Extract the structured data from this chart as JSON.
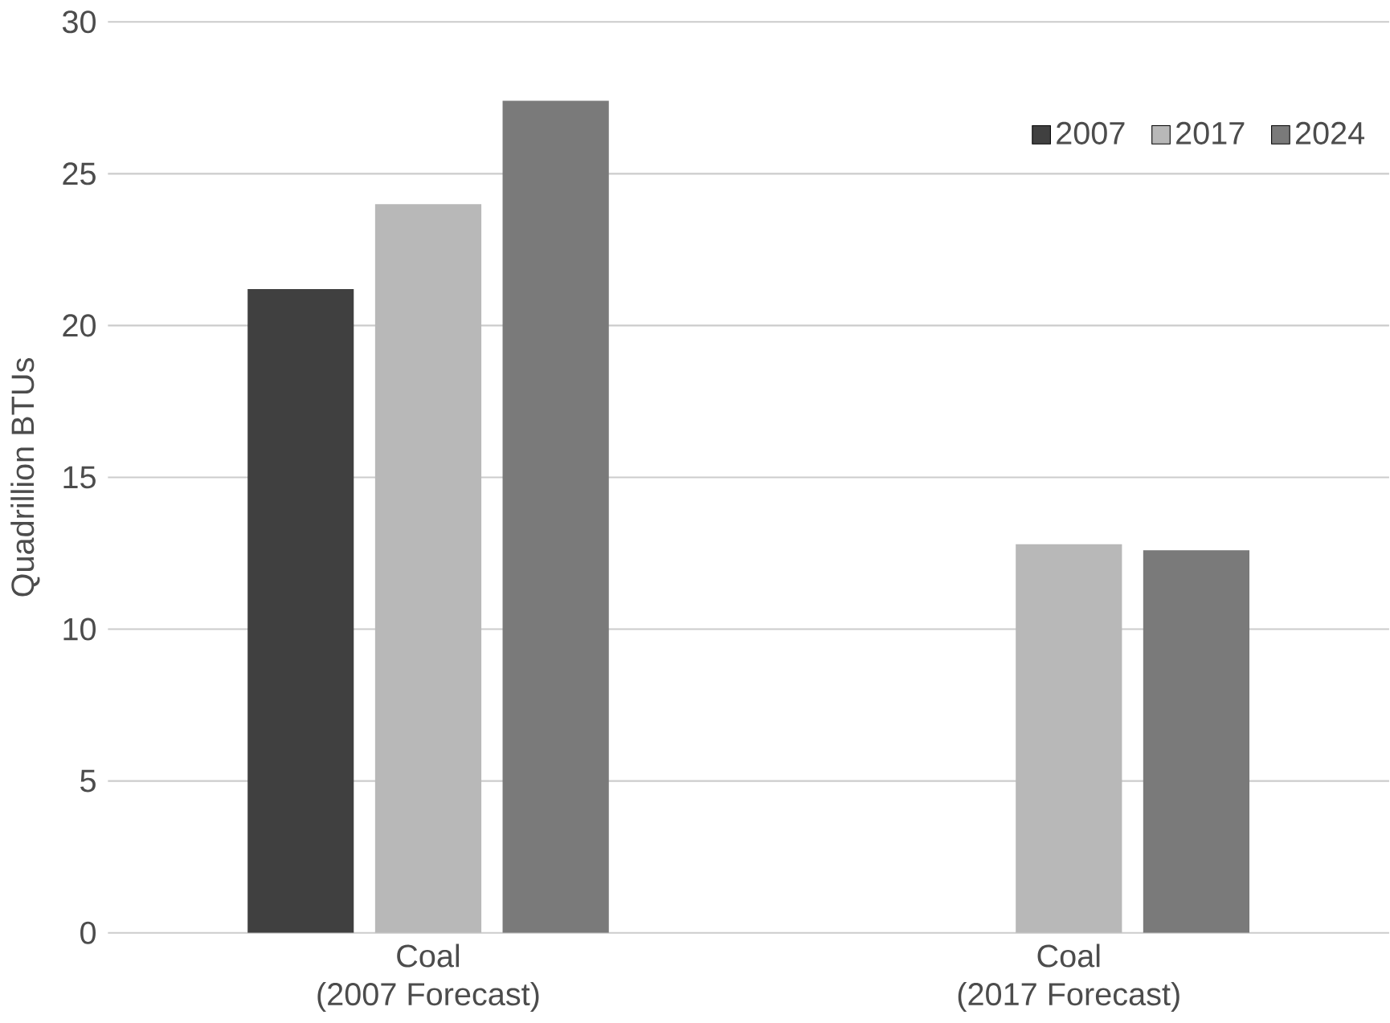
{
  "chart_data": {
    "type": "bar",
    "ylabel": "Quadrillion BTUs",
    "categories": [
      "Coal\n(2007 Forecast)",
      "Coal\n(2017 Forecast)"
    ],
    "series": [
      {
        "name": "2007",
        "color": "#404040",
        "values": [
          21.2,
          null
        ]
      },
      {
        "name": "2017",
        "color": "#b8b8b8",
        "values": [
          24.0,
          12.8
        ]
      },
      {
        "name": "2024",
        "color": "#7a7a7a",
        "values": [
          27.4,
          12.6
        ]
      }
    ],
    "ylim": [
      0,
      30
    ],
    "yticks": [
      0,
      5,
      10,
      15,
      20,
      25,
      30
    ],
    "grid": "y",
    "legend": "top right"
  }
}
